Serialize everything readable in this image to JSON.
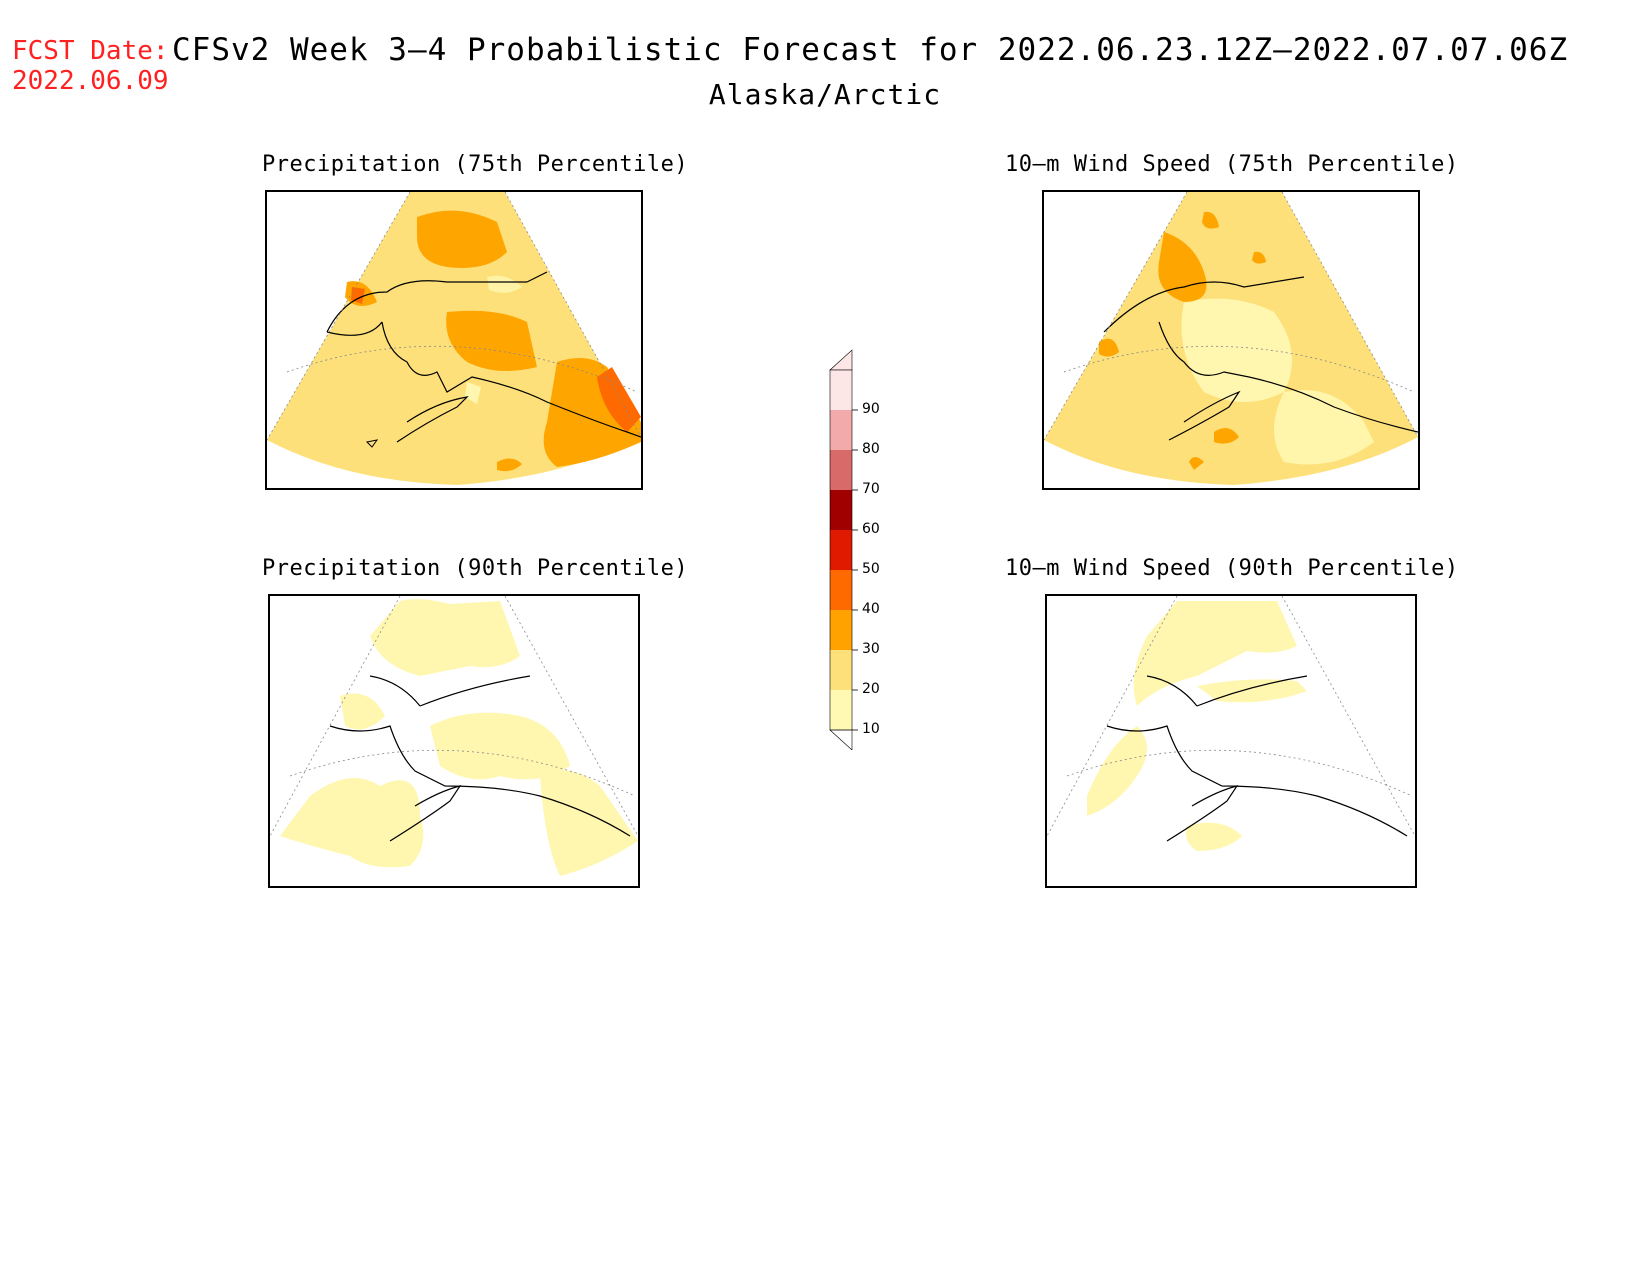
{
  "header": {
    "fcst_label": "FCST Date:",
    "fcst_date": "2022.06.09",
    "title": "CFSv2 Week 3–4 Probabilistic Forecast for 2022.06.23.12Z–2022.07.07.06Z",
    "subtitle": "Alaska/Arctic"
  },
  "panels": [
    {
      "title": "Precipitation (75th Percentile)",
      "variable": "precipitation",
      "percentile": 75
    },
    {
      "title": "10–m Wind Speed (75th Percentile)",
      "variable": "wind_speed_10m",
      "percentile": 75
    },
    {
      "title": "Precipitation (90th Percentile)",
      "variable": "precipitation",
      "percentile": 90
    },
    {
      "title": "10–m Wind Speed (90th Percentile)",
      "variable": "wind_speed_10m",
      "percentile": 90
    }
  ],
  "colorbar": {
    "levels": [
      "10",
      "20",
      "30",
      "40",
      "50",
      "60",
      "70",
      "80",
      "90"
    ],
    "colors": [
      "#fff9b4",
      "#fde07a",
      "#ffa200",
      "#ff6a00",
      "#e01a00",
      "#a00000",
      "#d86a6a",
      "#f2aaaa",
      "#fde6e6"
    ]
  },
  "colors": {
    "fcst_text": "#ff2020",
    "p10_20": "#fff7b0",
    "p20_30": "#fde07a",
    "p30_40": "#ffa500",
    "p40_50": "#ff6a00"
  }
}
